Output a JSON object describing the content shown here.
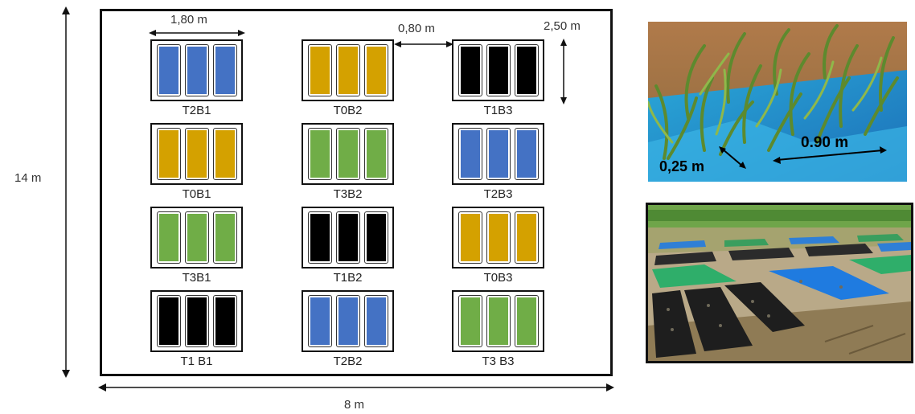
{
  "dimensions": {
    "height_label": "14 m",
    "width_label": "8 m",
    "plot_width_label": "1,80 m",
    "gap_label": "0,80 m",
    "plot_length_label": "2,50 m"
  },
  "treatment_colors": {
    "T0": "#d4a100",
    "T1": "#000000",
    "T2": "#4472c4",
    "T3": "#70ad47"
  },
  "plots": [
    {
      "label": "T2B1",
      "treatment": "T2"
    },
    {
      "label": "T0B2",
      "treatment": "T0"
    },
    {
      "label": "T1B3",
      "treatment": "T1"
    },
    {
      "label": "T0B1",
      "treatment": "T0"
    },
    {
      "label": "T3B2",
      "treatment": "T3"
    },
    {
      "label": "T2B3",
      "treatment": "T2"
    },
    {
      "label": "T3B1",
      "treatment": "T3"
    },
    {
      "label": "T1B2",
      "treatment": "T1"
    },
    {
      "label": "T0B3",
      "treatment": "T0"
    },
    {
      "label": "T1 B1",
      "treatment": "T1"
    },
    {
      "label": "T2B2",
      "treatment": "T2"
    },
    {
      "label": "T3 B3",
      "treatment": "T3"
    }
  ],
  "photo_top": {
    "row_spacing_label": "0.90 m",
    "plant_spacing_label": "0,25 m"
  }
}
